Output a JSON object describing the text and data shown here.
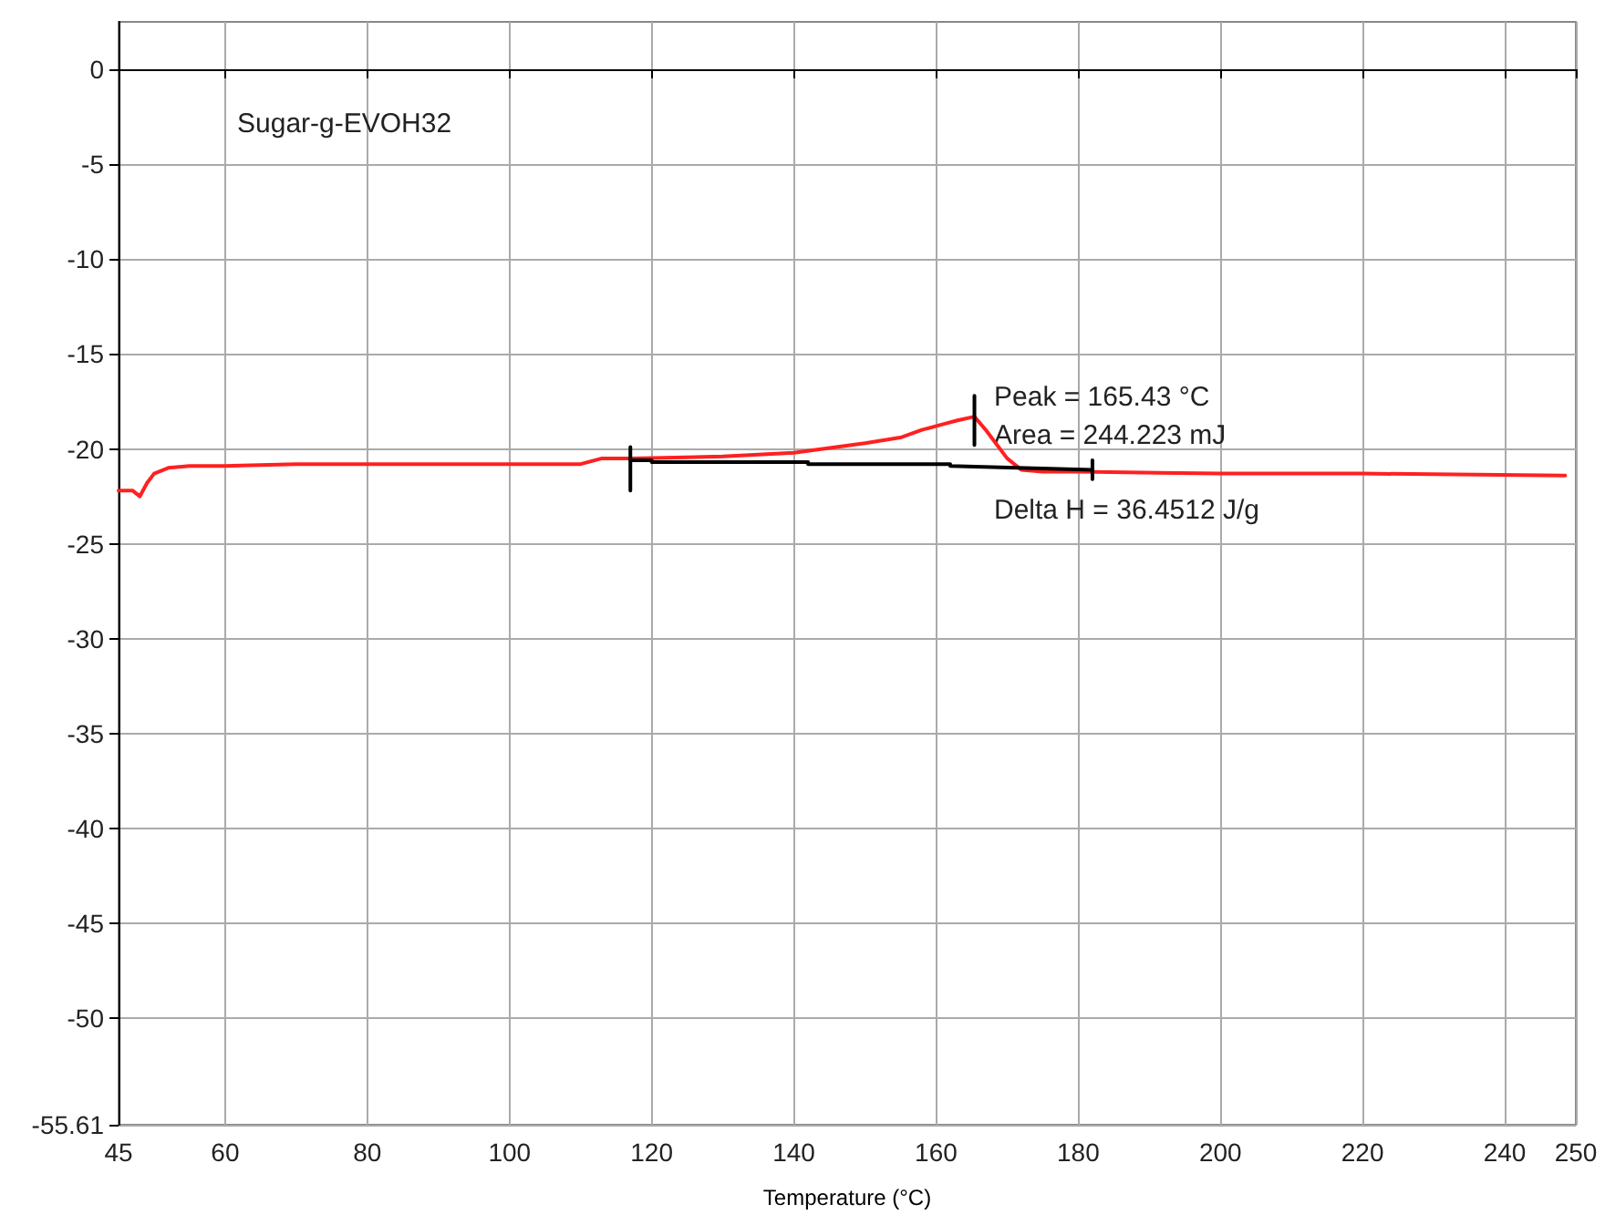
{
  "chart_data": {
    "type": "line",
    "xlabel": "Temperature (°C)",
    "annotations": [
      "Sugar-g-EVOH32",
      "Peak = 165.43 °C",
      "Area = 244.223 mJ",
      "Delta H = 36.4512 J/g"
    ],
    "series": [
      {
        "color": "#ff2020",
        "x": [
          45,
          47,
          48,
          49,
          50,
          52,
          55,
          60,
          70,
          90,
          110,
          113,
          117,
          130,
          140,
          150,
          155,
          158,
          161,
          163,
          165.4,
          167,
          170,
          172,
          175,
          180,
          200,
          220,
          248.5
        ],
        "values": [
          -22.2,
          -22.2,
          -22.5,
          -21.8,
          -21.3,
          -21.0,
          -20.9,
          -20.9,
          -20.8,
          -20.8,
          -20.8,
          -20.5,
          -20.5,
          -20.4,
          -20.2,
          -19.7,
          -19.4,
          -19.0,
          -18.7,
          -18.5,
          -18.3,
          -19.0,
          -20.5,
          -21.1,
          -21.2,
          -21.2,
          -21.3,
          -21.3,
          -21.4
        ]
      },
      {
        "color": "#000000",
        "x": [
          117,
          120,
          120,
          142,
          142,
          162,
          162,
          182
        ],
        "values": [
          -20.6,
          -20.6,
          -20.7,
          -20.7,
          -20.8,
          -20.8,
          -20.9,
          -21.1
        ]
      },
      {
        "color": "#000000",
        "x": [
          117,
          117,
          null,
          165.4,
          165.4,
          null,
          182,
          182
        ],
        "values": [
          -19.9,
          -22.2,
          null,
          -17.2,
          -19.8,
          null,
          -20.6,
          -21.6
        ]
      }
    ],
    "xlim": [
      45,
      250
    ],
    "xticks": [
      45,
      60,
      80,
      100,
      120,
      140,
      160,
      180,
      200,
      220,
      240,
      250
    ],
    "ylim": [
      -55.61,
      2.5
    ],
    "yticks": [
      0,
      -5,
      -10,
      -15,
      -20,
      -25,
      -30,
      -35,
      -40,
      -45,
      -50,
      -55.61
    ],
    "grid": true,
    "marker": "none",
    "line_style": "solid"
  }
}
